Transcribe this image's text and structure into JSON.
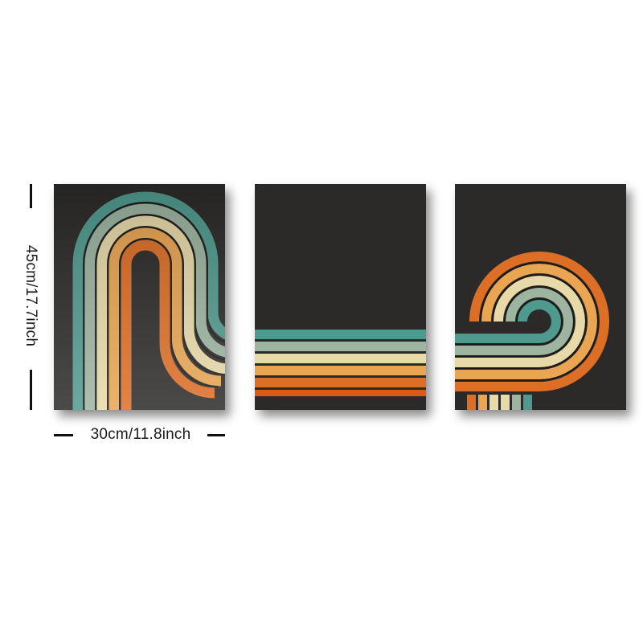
{
  "dimensions": {
    "height_label": "45cm/17.7inch",
    "width_label": "30cm/11.8inch"
  },
  "colors": {
    "background": "#2b2a28",
    "stripes": [
      "#4f9a8e",
      "#9cb4a0",
      "#e8d9a8",
      "#e9a552",
      "#dd6e26",
      "#dc5a16"
    ]
  },
  "panels": [
    "panel-left-arch",
    "panel-middle-stripes",
    "panel-right-spiral"
  ]
}
